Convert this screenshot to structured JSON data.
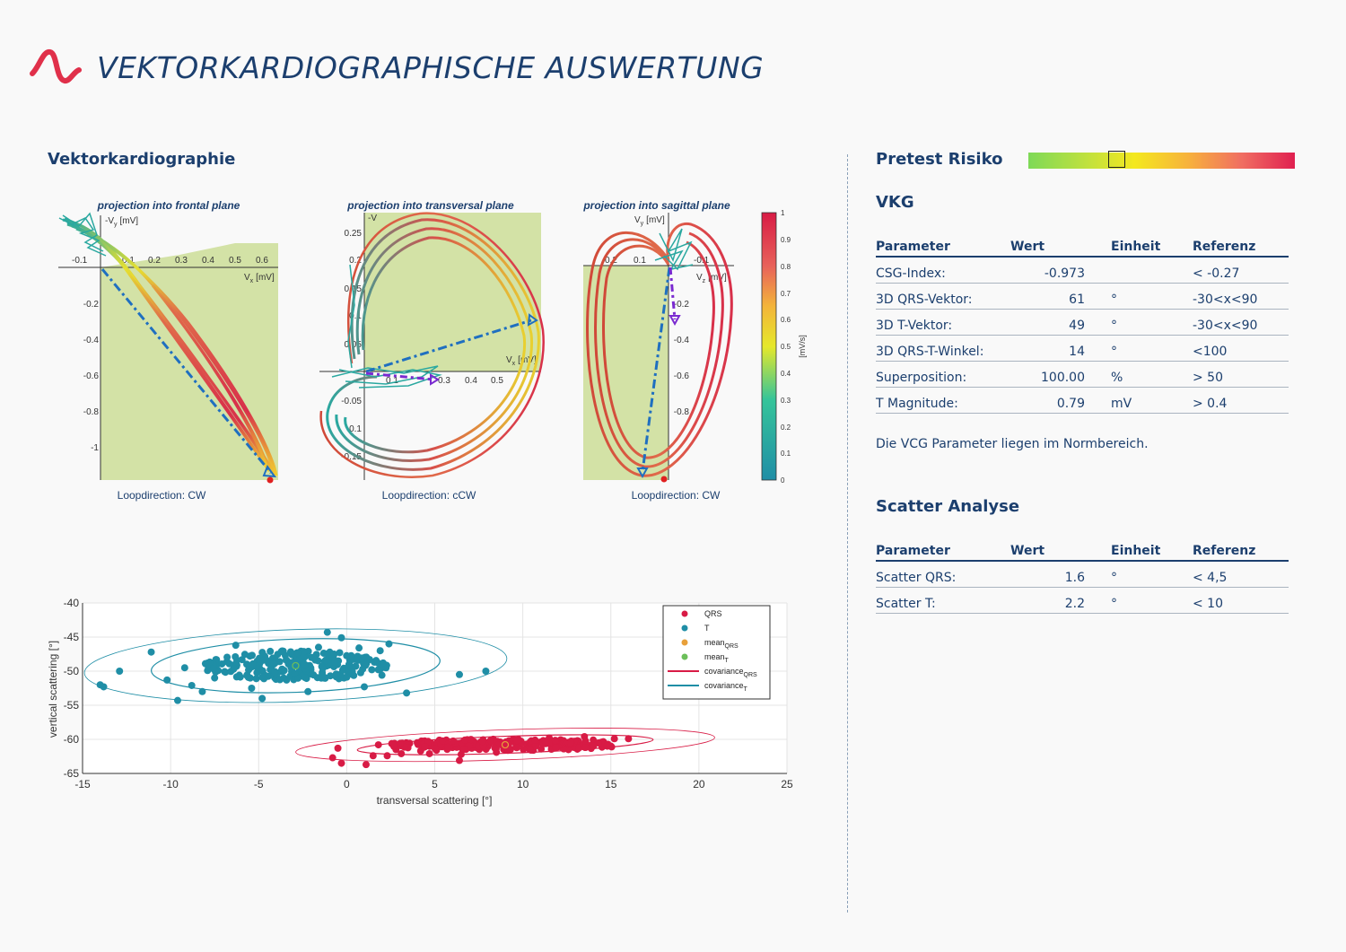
{
  "page": {
    "title": "VEKTORKARDIOGRAPHISCHE AUSWERTUNG"
  },
  "colors": {
    "brand_red": "#e0304a",
    "title_blue": "#1c3f6e",
    "qrs": "#d81b45",
    "t": "#1f8ea6",
    "plane_fill": "#d3e2a6"
  },
  "sections": {
    "vcg": "Vektorkardiographie",
    "pretest": "Pretest Risiko",
    "vkg": "VKG",
    "scatter": "Scatter Analyse"
  },
  "pretest_risk": {
    "marker_fraction": 0.33
  },
  "vkg_table": {
    "headers": [
      "Parameter",
      "Wert",
      "Einheit",
      "Referenz"
    ],
    "rows": [
      [
        "CSG-Index:",
        "-0.973",
        "",
        "< -0.27"
      ],
      [
        "3D QRS-Vektor:",
        "61",
        "°",
        "-30<x<90"
      ],
      [
        "3D T-Vektor:",
        "49",
        "°",
        "-30<x<90"
      ],
      [
        "3D QRS-T-Winkel:",
        "14",
        "°",
        "<100"
      ],
      [
        "Superposition:",
        "100.00",
        "%",
        "> 50"
      ],
      [
        "T Magnitude:",
        "0.79",
        "mV",
        "> 0.4"
      ]
    ]
  },
  "vkg_note": "Die VCG Parameter liegen im Normbereich.",
  "scatter_table": {
    "headers": [
      "Parameter",
      "Wert",
      "Einheit",
      "Referenz"
    ],
    "rows": [
      [
        "Scatter QRS:",
        "1.6",
        "°",
        "< 4,5"
      ],
      [
        "Scatter T:",
        "2.2",
        "°",
        "< 10"
      ]
    ]
  },
  "loops": [
    {
      "title": "projection into frontal plane",
      "footer": "Loopdirection: CW",
      "xaxis": "V",
      "xsub": "x",
      "xunit": "[mV]",
      "yaxis": "-V",
      "ysub": "y",
      "yunit": "[mV]",
      "xticks": [
        "-0.1",
        "0.1",
        "0.2",
        "0.3",
        "0.4",
        "0.5",
        "0.6"
      ],
      "yticks": [
        "-0.2",
        "-0.4",
        "-0.6",
        "-0.8",
        "-1"
      ]
    },
    {
      "title": "projection into transversal plane",
      "footer": "Loopdirection: cCW",
      "xaxis": "V",
      "xsub": "x",
      "xunit": "[mV]",
      "yaxis": "-V",
      "ysub": "",
      "yunit": "",
      "xticks": [
        "0.1",
        "0.3",
        "0.4",
        "0.5"
      ],
      "yticks": [
        "0.25",
        "0.2",
        "0.15",
        "0.1",
        "0.05",
        "-0.05",
        "-0.1",
        "-0.15"
      ]
    },
    {
      "title": "projection into sagittal plane",
      "footer": "Loopdirection: CW",
      "xaxis": "V",
      "xsub": "z",
      "xunit": "[mV]",
      "yaxis": "V",
      "ysub": "y",
      "yunit": "[mV]",
      "xticks": [
        "0.2",
        "0.1",
        "-0.1"
      ],
      "yticks": [
        "-0.2",
        "-0.4",
        "-0.6",
        "-0.8"
      ]
    }
  ],
  "colorbar": {
    "ticks": [
      "1",
      "0.9",
      "0.8",
      "0.7",
      "0.6",
      "0.5",
      "0.4",
      "0.3",
      "0.2",
      "0.1",
      "0"
    ],
    "label": "[mV/s]"
  },
  "chart_data": {
    "type": "scatter",
    "xlabel": "transversal scattering  [°]",
    "ylabel": "vertical scattering [°]",
    "xlim": [
      -15,
      25
    ],
    "ylim": [
      -65,
      -40
    ],
    "xticks": [
      -15,
      -10,
      -5,
      0,
      5,
      10,
      15,
      20,
      25
    ],
    "yticks": [
      -40,
      -45,
      -50,
      -55,
      -60,
      -65
    ],
    "grid": true,
    "legend_position": "top-right",
    "legend": [
      {
        "label": "QRS",
        "kind": "dot",
        "color": "#d81b45"
      },
      {
        "label": "T",
        "kind": "dot",
        "color": "#1f8ea6"
      },
      {
        "label": "mean",
        "sub": "QRS",
        "kind": "dot",
        "color": "#e8a03a"
      },
      {
        "label": "mean",
        "sub": "T",
        "kind": "dot",
        "color": "#6cbf5a"
      },
      {
        "label": "covariance",
        "sub": "QRS",
        "kind": "line",
        "color": "#d81b45"
      },
      {
        "label": "covariance",
        "sub": "T",
        "kind": "line",
        "color": "#1f8ea6"
      }
    ],
    "series": [
      {
        "name": "QRS",
        "mean": [
          9,
          -60.8
        ],
        "points": [
          [
            -0.8,
            -62.7
          ],
          [
            -0.3,
            -63.5
          ],
          [
            1.1,
            -63.7
          ],
          [
            -0.5,
            -61.3
          ],
          [
            1.5,
            -62.4
          ],
          [
            2.3,
            -62.4
          ],
          [
            3.1,
            -62.1
          ],
          [
            4.2,
            -61.7
          ],
          [
            5.1,
            -61.6
          ],
          [
            6.0,
            -61.2
          ],
          [
            7.1,
            -61.3
          ],
          [
            8.0,
            -61.1
          ],
          [
            9.1,
            -60.7
          ],
          [
            10.2,
            -60.7
          ],
          [
            11.0,
            -60.4
          ],
          [
            12.2,
            -60.3
          ],
          [
            13.1,
            -60.2
          ],
          [
            14.0,
            -60.1
          ],
          [
            15.2,
            -59.9
          ],
          [
            16.0,
            -59.9
          ],
          [
            3.5,
            -60.8
          ],
          [
            5.6,
            -60.3
          ],
          [
            7.6,
            -60.4
          ],
          [
            9.5,
            -60.1
          ],
          [
            11.5,
            -59.8
          ],
          [
            4.7,
            -62.1
          ],
          [
            6.5,
            -62.2
          ],
          [
            8.5,
            -61.9
          ],
          [
            10.6,
            -61.6
          ],
          [
            12.6,
            -61.0
          ],
          [
            6.4,
            -63.1
          ],
          [
            1.8,
            -60.8
          ],
          [
            14.8,
            -61.0
          ],
          [
            13.5,
            -59.6
          ],
          [
            2.8,
            -61.5
          ]
        ],
        "cov": [
          {
            "rx": 8.4,
            "ry": 1.25,
            "w": 1.2
          },
          {
            "rx": 11.9,
            "ry": 2.2,
            "w": 0.8
          }
        ]
      },
      {
        "name": "T",
        "mean": [
          -2.9,
          -49.2
        ],
        "points": [
          [
            -14,
            -52
          ],
          [
            -13.8,
            -52.3
          ],
          [
            -11.1,
            -47.2
          ],
          [
            -10.2,
            -51.3
          ],
          [
            -9.2,
            -49.5
          ],
          [
            -8.8,
            -52.1
          ],
          [
            -7.9,
            -49.9
          ],
          [
            -7.5,
            -51.0
          ],
          [
            -6.8,
            -48.6
          ],
          [
            -6.1,
            -50.6
          ],
          [
            -5.5,
            -49.3
          ],
          [
            -4.7,
            -51.1
          ],
          [
            -4.2,
            -48.1
          ],
          [
            -3.6,
            -50.0
          ],
          [
            -3.1,
            -47.6
          ],
          [
            -2.5,
            -50.3
          ],
          [
            -2.0,
            -48.0
          ],
          [
            -1.6,
            -46.5
          ],
          [
            -1.0,
            -49.1
          ],
          [
            -0.4,
            -47.3
          ],
          [
            0.2,
            -48.5
          ],
          [
            0.7,
            -46.6
          ],
          [
            1.3,
            -48.3
          ],
          [
            1.9,
            -47.0
          ],
          [
            2.4,
            -46.0
          ],
          [
            -12.9,
            -50.0
          ],
          [
            -8.2,
            -53.0
          ],
          [
            -9.6,
            -54.3
          ],
          [
            -4.8,
            -54.0
          ],
          [
            -2.2,
            -53.0
          ],
          [
            -1.1,
            -44.3
          ],
          [
            -6.3,
            -46.2
          ],
          [
            1.0,
            -52.3
          ],
          [
            2.0,
            -50.6
          ],
          [
            6.4,
            -50.5
          ],
          [
            7.9,
            -50.0
          ],
          [
            3.4,
            -53.2
          ],
          [
            -5.4,
            -52.5
          ],
          [
            -0.3,
            -45.1
          ]
        ],
        "cov": [
          {
            "rx": 8.2,
            "ry": 3.9,
            "w": 1.2
          },
          {
            "rx": 12.0,
            "ry": 5.3,
            "w": 0.8
          }
        ]
      }
    ]
  }
}
